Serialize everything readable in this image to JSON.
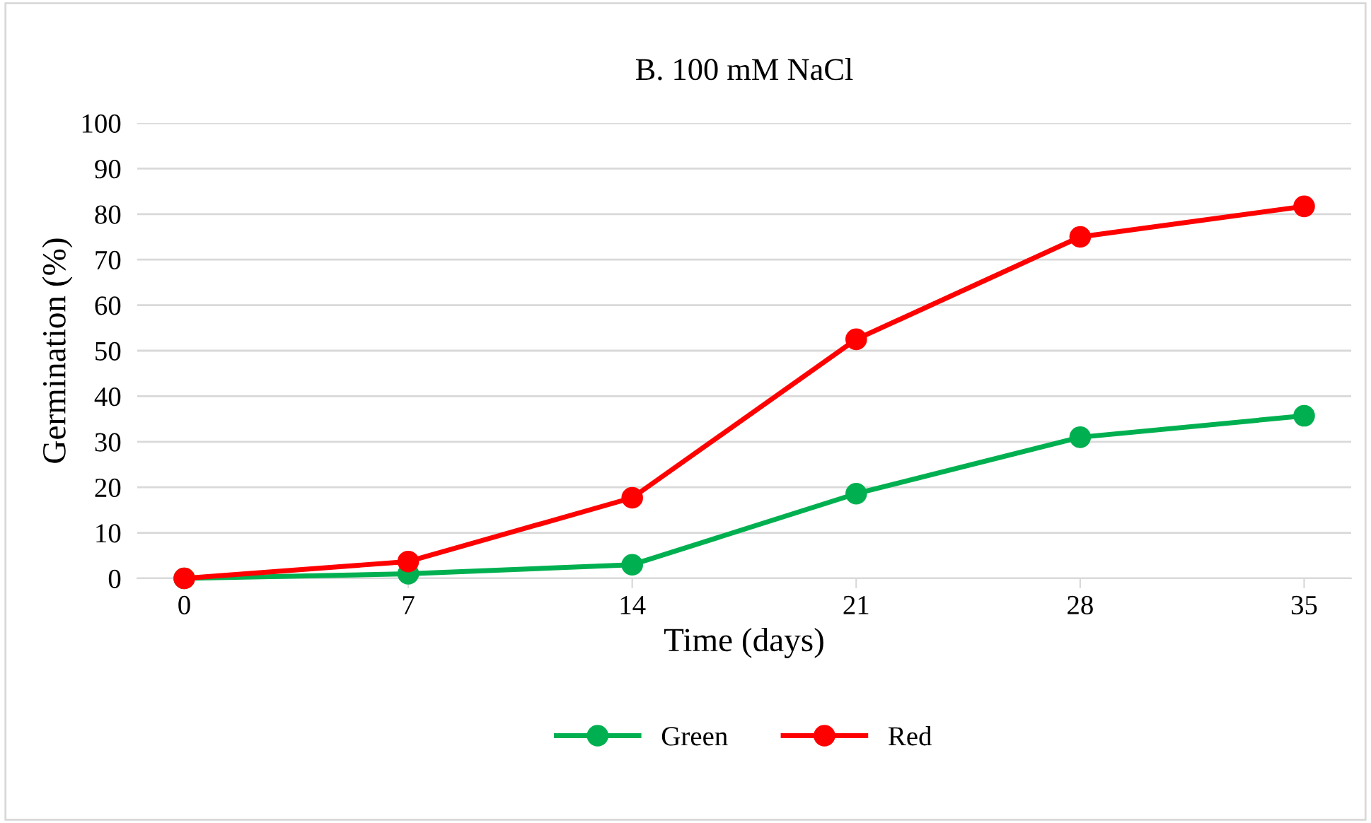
{
  "chart_data": {
    "type": "line",
    "title": "B. 100 mM NaCl",
    "xlabel": "Time (days)",
    "ylabel": "Germination (%)",
    "categories": [
      "0",
      "7",
      "14",
      "21",
      "28",
      "35"
    ],
    "series": [
      {
        "name": "Green",
        "color": "#00b050",
        "values": [
          0,
          1,
          3,
          18.6,
          31,
          35.7
        ]
      },
      {
        "name": "Red",
        "color": "#ff0000",
        "values": [
          0,
          3.7,
          17.7,
          52.5,
          75,
          81.7
        ]
      }
    ],
    "ylim": [
      0,
      100
    ],
    "yticks": [
      0,
      10,
      20,
      30,
      40,
      50,
      60,
      70,
      80,
      90,
      100
    ],
    "grid": "y",
    "legend": "bottom",
    "marker": "circle",
    "line_style": "solid"
  }
}
